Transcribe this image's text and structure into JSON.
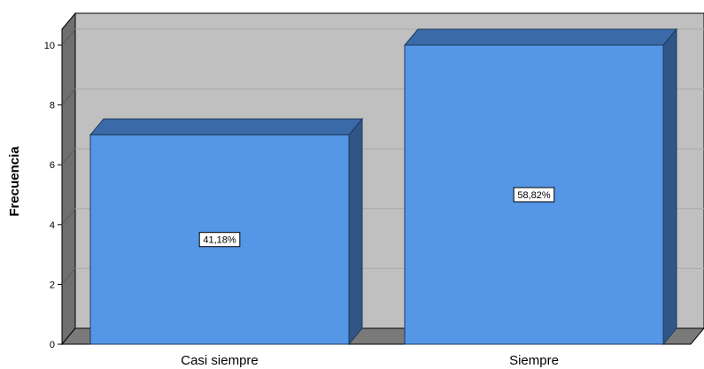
{
  "chart_data": {
    "type": "bar",
    "categories": [
      "Casi siempre",
      "Siempre"
    ],
    "values": [
      7,
      10
    ],
    "data_labels": [
      "41,18%",
      "58,82%"
    ],
    "ylabel": "Frecuencia",
    "ylim": [
      0,
      10
    ],
    "yticks": [
      "0",
      "2",
      "4",
      "6",
      "8",
      "10"
    ],
    "grid": true,
    "style": "3d",
    "colors": {
      "bar_front": "#5596e6",
      "bar_top": "#3a6aa7",
      "bar_side": "#2f5687",
      "plot_back": "#c0c0c0",
      "plot_floor": "#7a7a7a",
      "plot_wall": "#6f6f6f",
      "grid": "#a9a9a9"
    }
  }
}
